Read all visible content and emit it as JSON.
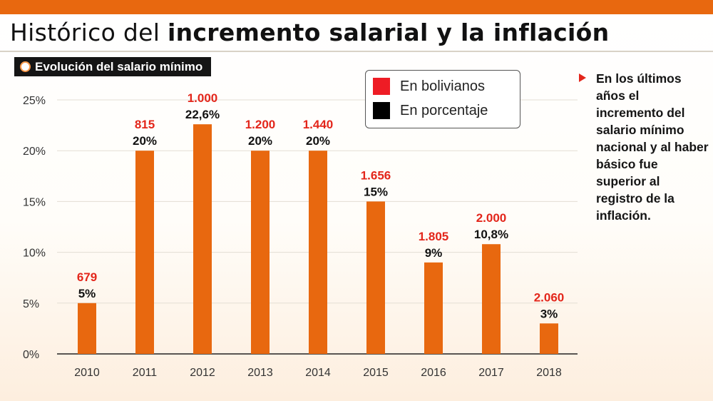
{
  "header": {
    "title_regular": "Histórico del ",
    "title_bold": "incremento salarial y la inflación",
    "subtitle": "Evolución del salario mínimo"
  },
  "legend": {
    "items": [
      {
        "label": "En bolivianos",
        "color": "#ee1c25"
      },
      {
        "label": "En porcentaje",
        "color": "#000000"
      }
    ]
  },
  "note": {
    "text": "En los últimos años el incremento del salario mínimo nacional y al haber básico fue superior al registro de la inflación."
  },
  "colors": {
    "bar": "#e8680f",
    "bolivianos_label": "#e3261b",
    "percent_label": "#111111",
    "grid": "#e3ddd4",
    "axis_text": "#333333"
  },
  "chart_data": {
    "type": "bar",
    "categories": [
      "2010",
      "2011",
      "2012",
      "2013",
      "2014",
      "2015",
      "2016",
      "2017",
      "2018"
    ],
    "series": [
      {
        "name": "En porcentaje",
        "values": [
          5,
          20,
          22.6,
          20,
          20,
          15,
          9,
          10.8,
          3
        ]
      }
    ],
    "percent_labels": [
      "5%",
      "20%",
      "22,6%",
      "20%",
      "20%",
      "15%",
      "9%",
      "10,8%",
      "3%"
    ],
    "bolivianos_labels": [
      "679",
      "815",
      "1.000",
      "1.200",
      "1.440",
      "1.656",
      "1.805",
      "2.000",
      "2.060"
    ],
    "y_ticks": [
      0,
      5,
      10,
      15,
      20,
      25
    ],
    "y_tick_labels": [
      "0%",
      "5%",
      "10%",
      "15%",
      "20%",
      "25%"
    ],
    "ylim": [
      0,
      25
    ],
    "grid": true,
    "legend_position": "top-right"
  }
}
